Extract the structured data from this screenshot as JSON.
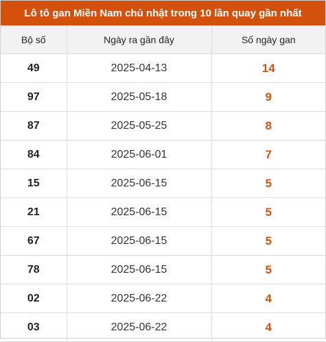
{
  "title": "Lô tô gan Miền Nam chủ nhật trong 10 lần quay gần nhất",
  "columns": [
    "Bộ số",
    "Ngày ra gần đây",
    "Số ngày gan"
  ],
  "rows": [
    {
      "number": "49",
      "date": "2025-04-13",
      "days": "14"
    },
    {
      "number": "97",
      "date": "2025-05-18",
      "days": "9"
    },
    {
      "number": "87",
      "date": "2025-05-25",
      "days": "8"
    },
    {
      "number": "84",
      "date": "2025-06-01",
      "days": "7"
    },
    {
      "number": "15",
      "date": "2025-06-15",
      "days": "5"
    },
    {
      "number": "21",
      "date": "2025-06-15",
      "days": "5"
    },
    {
      "number": "67",
      "date": "2025-06-15",
      "days": "5"
    },
    {
      "number": "78",
      "date": "2025-06-15",
      "days": "5"
    },
    {
      "number": "02",
      "date": "2025-06-22",
      "days": "4"
    },
    {
      "number": "03",
      "date": "2025-06-22",
      "days": "4"
    }
  ],
  "colors": {
    "accent": "#d4510d",
    "header_bg": "#f2f2f2",
    "border": "#dcdcdc"
  }
}
